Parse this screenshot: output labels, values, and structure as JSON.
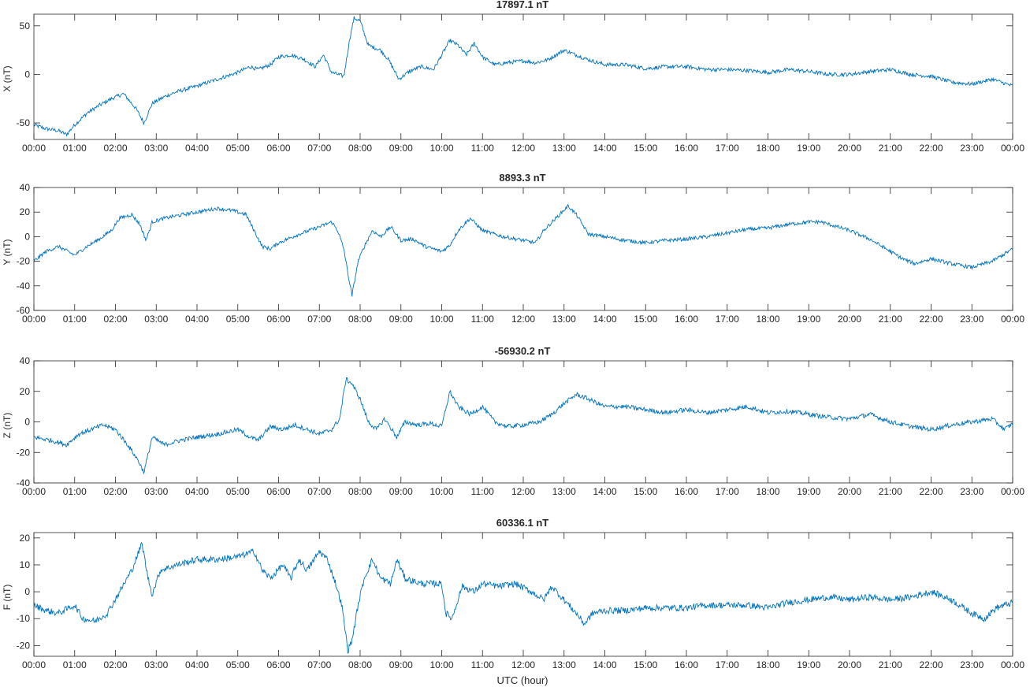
{
  "line_color": "#0072bd",
  "axes_color": "#262626",
  "x_axis_label": "UTC (hour)",
  "chart_data": [
    {
      "type": "line",
      "title": "17897.1 nT",
      "ylabel": "X (nT)",
      "ylim": [
        -67,
        62
      ],
      "yticks": [
        -50,
        0,
        50
      ],
      "xlim": [
        0,
        24
      ],
      "xticks": [
        "00:00",
        "01:00",
        "02:00",
        "03:00",
        "04:00",
        "05:00",
        "06:00",
        "07:00",
        "08:00",
        "09:00",
        "10:00",
        "11:00",
        "12:00",
        "13:00",
        "14:00",
        "15:00",
        "16:00",
        "17:00",
        "18:00",
        "19:00",
        "20:00",
        "21:00",
        "22:00",
        "23:00",
        "00:00"
      ],
      "noise": 2.0,
      "series": [
        {
          "x": [
            0,
            0.3,
            0.6,
            0.8,
            1.0,
            1.3,
            1.6,
            1.9,
            2.2,
            2.5,
            2.7,
            2.9,
            3.2,
            3.5,
            4.0,
            4.5,
            5.0,
            5.3,
            5.5,
            5.8,
            6.0,
            6.3,
            6.6,
            6.9,
            7.1,
            7.3,
            7.45,
            7.6,
            7.75,
            7.85,
            8.0,
            8.2,
            8.5,
            8.7,
            8.95,
            9.2,
            9.5,
            9.8,
            10.0,
            10.2,
            10.4,
            10.6,
            10.8,
            11.0,
            11.3,
            11.6,
            12.0,
            12.3,
            12.6,
            13.0,
            13.3,
            13.6,
            14.0,
            14.5,
            15.0,
            15.5,
            16.0,
            16.5,
            17.0,
            17.5,
            18.0,
            18.5,
            19.0,
            19.5,
            20.0,
            20.5,
            21.0,
            21.5,
            22.0,
            22.5,
            23.0,
            23.5,
            24.0
          ],
          "y": [
            -52,
            -56,
            -58,
            -62,
            -52,
            -40,
            -32,
            -25,
            -20,
            -35,
            -50,
            -30,
            -23,
            -18,
            -12,
            -5,
            2,
            8,
            5,
            10,
            18,
            20,
            16,
            8,
            20,
            2,
            0,
            -2,
            38,
            58,
            55,
            30,
            25,
            15,
            -5,
            3,
            8,
            5,
            20,
            35,
            30,
            20,
            32,
            18,
            10,
            12,
            14,
            12,
            15,
            25,
            20,
            15,
            10,
            10,
            6,
            8,
            8,
            5,
            5,
            4,
            2,
            5,
            3,
            0,
            0,
            3,
            5,
            0,
            -2,
            -8,
            -10,
            -5,
            -12
          ]
        }
      ]
    },
    {
      "type": "line",
      "title": "8893.3 nT",
      "ylabel": "Y (nT)",
      "ylim": [
        -60,
        40
      ],
      "yticks": [
        -60,
        -40,
        -20,
        0,
        20,
        40
      ],
      "xlim": [
        0,
        24
      ],
      "xticks": [
        "00:00",
        "01:00",
        "02:00",
        "03:00",
        "04:00",
        "05:00",
        "06:00",
        "07:00",
        "08:00",
        "09:00",
        "10:00",
        "11:00",
        "12:00",
        "13:00",
        "14:00",
        "15:00",
        "16:00",
        "17:00",
        "18:00",
        "19:00",
        "20:00",
        "21:00",
        "22:00",
        "23:00",
        "00:00"
      ],
      "noise": 1.5,
      "series": [
        {
          "x": [
            0,
            0.3,
            0.6,
            1.0,
            1.3,
            1.6,
            1.9,
            2.1,
            2.4,
            2.6,
            2.75,
            2.9,
            3.2,
            3.5,
            4.0,
            4.5,
            4.9,
            5.2,
            5.4,
            5.6,
            5.8,
            6.0,
            6.5,
            7.0,
            7.3,
            7.45,
            7.6,
            7.7,
            7.8,
            7.95,
            8.1,
            8.3,
            8.5,
            8.75,
            9.0,
            9.3,
            9.6,
            10.0,
            10.2,
            10.4,
            10.7,
            11.0,
            11.5,
            12.0,
            12.3,
            12.5,
            12.8,
            13.1,
            13.3,
            13.6,
            14.0,
            14.5,
            15.0,
            15.5,
            16.0,
            16.5,
            17.0,
            17.5,
            18.0,
            18.5,
            19.0,
            19.3,
            19.7,
            20.0,
            20.5,
            21.0,
            21.3,
            21.6,
            22.0,
            22.5,
            23.0,
            23.5,
            24.0
          ],
          "y": [
            -20,
            -12,
            -8,
            -15,
            -8,
            -2,
            5,
            15,
            18,
            10,
            -3,
            12,
            15,
            17,
            20,
            23,
            21,
            18,
            5,
            -8,
            -10,
            -5,
            2,
            8,
            12,
            5,
            -10,
            -30,
            -48,
            -20,
            -8,
            5,
            0,
            8,
            -3,
            -2,
            -8,
            -12,
            -7,
            5,
            15,
            5,
            0,
            -3,
            -5,
            5,
            15,
            25,
            18,
            2,
            0,
            -3,
            -5,
            -3,
            -2,
            0,
            3,
            6,
            7,
            10,
            12,
            12,
            8,
            5,
            -2,
            -12,
            -18,
            -22,
            -18,
            -22,
            -25,
            -20,
            -10
          ]
        }
      ]
    },
    {
      "type": "line",
      "title": "-56930.2 nT",
      "ylabel": "Z (nT)",
      "ylim": [
        -40,
        40
      ],
      "yticks": [
        -40,
        -20,
        0,
        20,
        40
      ],
      "xlim": [
        0,
        24
      ],
      "xticks": [
        "00:00",
        "01:00",
        "02:00",
        "03:00",
        "04:00",
        "05:00",
        "06:00",
        "07:00",
        "08:00",
        "09:00",
        "10:00",
        "11:00",
        "12:00",
        "13:00",
        "14:00",
        "15:00",
        "16:00",
        "17:00",
        "18:00",
        "19:00",
        "20:00",
        "21:00",
        "22:00",
        "23:00",
        "00:00"
      ],
      "noise": 1.5,
      "series": [
        {
          "x": [
            0,
            0.4,
            0.8,
            1.1,
            1.4,
            1.7,
            2.0,
            2.3,
            2.55,
            2.7,
            2.9,
            3.2,
            3.6,
            4.0,
            4.5,
            5.0,
            5.3,
            5.5,
            5.8,
            6.1,
            6.4,
            6.7,
            7.0,
            7.3,
            7.5,
            7.65,
            7.8,
            8.0,
            8.2,
            8.4,
            8.6,
            8.9,
            9.1,
            9.4,
            9.7,
            10.0,
            10.2,
            10.4,
            10.7,
            11.0,
            11.3,
            11.6,
            12.0,
            12.4,
            12.7,
            13.0,
            13.3,
            13.6,
            14.0,
            14.5,
            15.0,
            15.5,
            16.0,
            16.5,
            17.0,
            17.5,
            18.0,
            18.5,
            19.0,
            19.5,
            20.0,
            20.5,
            21.0,
            21.5,
            22.0,
            22.5,
            23.0,
            23.5,
            23.8,
            24.0
          ],
          "y": [
            -10,
            -12,
            -15,
            -8,
            -5,
            -2,
            -5,
            -15,
            -25,
            -33,
            -10,
            -15,
            -12,
            -10,
            -8,
            -5,
            -10,
            -12,
            -3,
            -5,
            -2,
            -5,
            -8,
            -5,
            2,
            28,
            25,
            15,
            0,
            -5,
            2,
            -10,
            0,
            -2,
            -1,
            -3,
            20,
            10,
            5,
            10,
            0,
            -3,
            -2,
            0,
            5,
            12,
            18,
            15,
            10,
            10,
            8,
            6,
            8,
            6,
            8,
            10,
            6,
            7,
            5,
            3,
            2,
            5,
            0,
            -3,
            -5,
            -2,
            0,
            2,
            -5,
            -1
          ]
        }
      ]
    },
    {
      "type": "line",
      "title": "60336.1 nT",
      "ylabel": "F (nT)",
      "ylim": [
        -24,
        22
      ],
      "yticks": [
        -20,
        -10,
        0,
        10,
        20
      ],
      "xlim": [
        0,
        24
      ],
      "xticks": [
        "00:00",
        "01:00",
        "02:00",
        "03:00",
        "04:00",
        "05:00",
        "06:00",
        "07:00",
        "08:00",
        "09:00",
        "10:00",
        "11:00",
        "12:00",
        "13:00",
        "14:00",
        "15:00",
        "16:00",
        "17:00",
        "18:00",
        "19:00",
        "20:00",
        "21:00",
        "22:00",
        "23:00",
        "00:00"
      ],
      "noise": 1.2,
      "series": [
        {
          "x": [
            0,
            0.3,
            0.6,
            1.0,
            1.2,
            1.5,
            1.8,
            2.1,
            2.4,
            2.65,
            2.8,
            2.9,
            3.1,
            3.5,
            4.0,
            4.5,
            5.0,
            5.4,
            5.6,
            5.8,
            6.1,
            6.3,
            6.5,
            6.7,
            7.0,
            7.2,
            7.4,
            7.55,
            7.7,
            7.8,
            7.95,
            8.1,
            8.3,
            8.5,
            8.75,
            8.9,
            9.1,
            9.5,
            10.0,
            10.1,
            10.25,
            10.5,
            10.8,
            11.0,
            11.4,
            11.8,
            12.2,
            12.5,
            12.7,
            13.0,
            13.3,
            13.5,
            13.7,
            14.0,
            14.5,
            15.0,
            15.5,
            16.0,
            16.5,
            17.0,
            17.5,
            18.0,
            18.5,
            19.0,
            19.5,
            20.0,
            20.5,
            21.0,
            21.5,
            22.0,
            22.5,
            23.0,
            23.3,
            23.6,
            24.0
          ],
          "y": [
            -5,
            -7,
            -8,
            -5,
            -10,
            -11,
            -8,
            0,
            8,
            18,
            5,
            -1,
            8,
            10,
            12,
            12,
            13,
            15,
            8,
            5,
            10,
            5,
            12,
            8,
            15,
            12,
            3,
            -5,
            -22,
            -18,
            -5,
            5,
            12,
            5,
            3,
            12,
            5,
            3,
            3,
            -8,
            -10,
            2,
            0,
            3,
            2,
            3,
            0,
            -3,
            2,
            -3,
            -8,
            -12,
            -8,
            -7,
            -7,
            -6,
            -6,
            -6,
            -5,
            -5,
            -5,
            -6,
            -4,
            -3,
            -2,
            -3,
            -2,
            -3,
            -2,
            0,
            -3,
            -8,
            -10,
            -6,
            -4
          ]
        }
      ]
    }
  ]
}
